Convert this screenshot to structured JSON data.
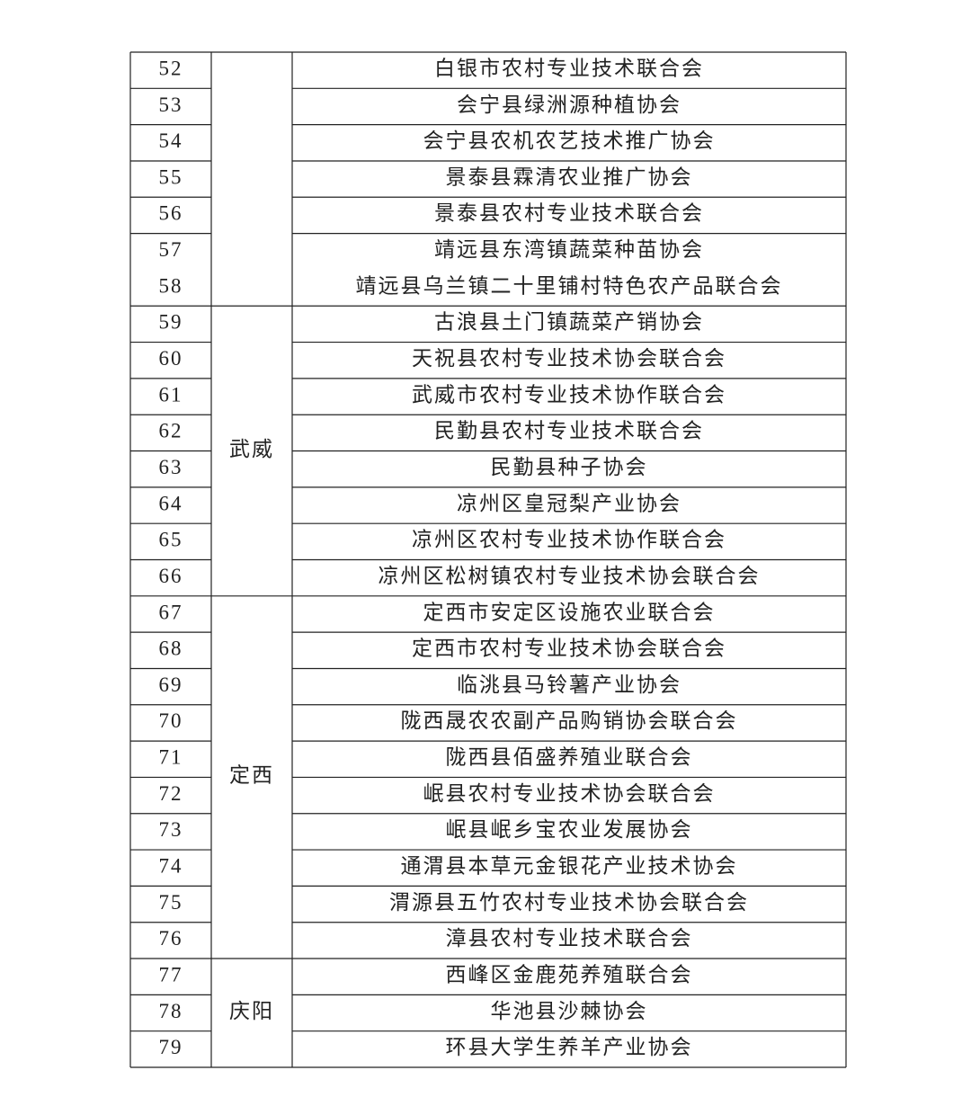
{
  "table": {
    "groups": [
      {
        "rows": [
          {
            "number": 52,
            "name": "白银市农村专业技术联合会"
          },
          {
            "number": 53,
            "name": "会宁县绿洲源种植协会"
          },
          {
            "number": 54,
            "name": "会宁县农机农艺技术推广协会"
          },
          {
            "number": 55,
            "name": "景泰县霖清农业推广协会"
          },
          {
            "number": 56,
            "name": "景泰县农村专业技术联合会"
          },
          {
            "number": 57,
            "name": "靖远县东湾镇蔬菜种苗协会"
          },
          {
            "number": 58,
            "name": "靖远县乌兰镇二十里铺村特色农产品联合会"
          }
        ]
      },
      {
        "region": "武威",
        "rows": [
          {
            "number": 59,
            "name": "古浪县土门镇蔬菜产销协会"
          },
          {
            "number": 60,
            "name": "天祝县农村专业技术协会联合会"
          },
          {
            "number": 61,
            "name": "武威市农村专业技术协作联合会"
          },
          {
            "number": 62,
            "name": "民勤县农村专业技术联合会"
          },
          {
            "number": 63,
            "name": "民勤县种子协会"
          },
          {
            "number": 64,
            "name": "凉州区皇冠梨产业协会"
          },
          {
            "number": 65,
            "name": "凉州区农村专业技术协作联合会"
          },
          {
            "number": 66,
            "name": "凉州区松树镇农村专业技术协会联合会"
          }
        ]
      },
      {
        "region": "定西",
        "rows": [
          {
            "number": 67,
            "name": "定西市安定区设施农业联合会"
          },
          {
            "number": 68,
            "name": "定西市农村专业技术协会联合会"
          },
          {
            "number": 69,
            "name": "临洮县马铃薯产业协会"
          },
          {
            "number": 70,
            "name": "陇西晟农农副产品购销协会联合会"
          },
          {
            "number": 71,
            "name": "陇西县佰盛养殖业联合会"
          },
          {
            "number": 72,
            "name": "岷县农村专业技术协会联合会"
          },
          {
            "number": 73,
            "name": "岷县岷乡宝农业发展协会"
          },
          {
            "number": 74,
            "name": "通渭县本草元金银花产业技术协会"
          },
          {
            "number": 75,
            "name": "渭源县五竹农村专业技术协会联合会"
          },
          {
            "number": 76,
            "name": "漳县农村专业技术联合会"
          }
        ]
      },
      {
        "region": "庆阳",
        "rows": [
          {
            "number": 77,
            "name": "西峰区金鹿苑养殖联合会"
          },
          {
            "number": 78,
            "name": "华池县沙棘协会"
          },
          {
            "number": 79,
            "name": "环县大学生养羊产业协会"
          }
        ]
      }
    ]
  }
}
